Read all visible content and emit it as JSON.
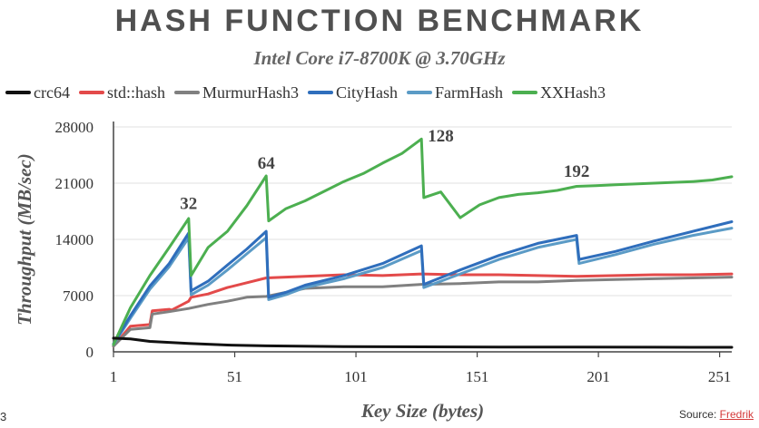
{
  "slide": {
    "title": "HASH FUNCTION BENCHMARK",
    "subtitle": "Intel Core i7-8700K @ 3.70GHz",
    "page_number": "3",
    "source_prefix": "Source: ",
    "source_link": "Fredrik"
  },
  "chart_data": {
    "type": "line",
    "title": "HASH FUNCTION BENCHMARK",
    "subtitle": "Intel Core i7-8700K @ 3.70GHz",
    "xlabel": "Key Size (bytes)",
    "ylabel": "Throughput (MB/sec)",
    "xlim": [
      1,
      256
    ],
    "ylim": [
      0,
      28000
    ],
    "xticks": [
      1,
      51,
      101,
      151,
      201,
      251
    ],
    "yticks": [
      0,
      7000,
      14000,
      21000,
      28000
    ],
    "grid": "horizontal",
    "legend_position": "top",
    "annotations": [
      {
        "text": "32",
        "x": 32,
        "y": 17800
      },
      {
        "text": "64",
        "x": 64,
        "y": 22800
      },
      {
        "text": "128",
        "x": 136,
        "y": 26200
      },
      {
        "text": "192",
        "x": 192,
        "y": 21800
      }
    ],
    "series": [
      {
        "name": "crc64",
        "color": "#111111",
        "points": [
          [
            1,
            1700
          ],
          [
            8,
            1600
          ],
          [
            16,
            1300
          ],
          [
            32,
            1050
          ],
          [
            48,
            850
          ],
          [
            64,
            750
          ],
          [
            96,
            650
          ],
          [
            128,
            620
          ],
          [
            160,
            600
          ],
          [
            192,
            590
          ],
          [
            224,
            580
          ],
          [
            256,
            570
          ]
        ]
      },
      {
        "name": "std::hash",
        "color": "#e34a4a",
        "points": [
          [
            1,
            700
          ],
          [
            8,
            3200
          ],
          [
            16,
            3400
          ],
          [
            17,
            5100
          ],
          [
            24,
            5300
          ],
          [
            25,
            5200
          ],
          [
            32,
            6300
          ],
          [
            33,
            6800
          ],
          [
            40,
            7200
          ],
          [
            48,
            8000
          ],
          [
            56,
            8600
          ],
          [
            64,
            9200
          ],
          [
            72,
            9300
          ],
          [
            80,
            9400
          ],
          [
            96,
            9600
          ],
          [
            112,
            9500
          ],
          [
            128,
            9700
          ],
          [
            144,
            9600
          ],
          [
            160,
            9600
          ],
          [
            176,
            9500
          ],
          [
            192,
            9400
          ],
          [
            208,
            9500
          ],
          [
            224,
            9600
          ],
          [
            240,
            9600
          ],
          [
            256,
            9700
          ]
        ]
      },
      {
        "name": "MurmurHash3",
        "color": "#808080",
        "points": [
          [
            1,
            700
          ],
          [
            8,
            2800
          ],
          [
            16,
            3000
          ],
          [
            17,
            4700
          ],
          [
            24,
            5000
          ],
          [
            32,
            5400
          ],
          [
            40,
            5900
          ],
          [
            48,
            6300
          ],
          [
            56,
            6800
          ],
          [
            64,
            6900
          ],
          [
            72,
            7400
          ],
          [
            80,
            7900
          ],
          [
            96,
            8100
          ],
          [
            112,
            8100
          ],
          [
            128,
            8400
          ],
          [
            144,
            8500
          ],
          [
            160,
            8700
          ],
          [
            176,
            8700
          ],
          [
            192,
            8900
          ],
          [
            208,
            9000
          ],
          [
            224,
            9100
          ],
          [
            240,
            9200
          ],
          [
            256,
            9300
          ]
        ]
      },
      {
        "name": "CityHash",
        "color": "#2f6ebc",
        "points": [
          [
            1,
            1000
          ],
          [
            8,
            4500
          ],
          [
            16,
            8200
          ],
          [
            24,
            11000
          ],
          [
            32,
            14800
          ],
          [
            33,
            7600
          ],
          [
            40,
            8800
          ],
          [
            48,
            10800
          ],
          [
            56,
            12800
          ],
          [
            64,
            15000
          ],
          [
            65,
            6800
          ],
          [
            72,
            7400
          ],
          [
            80,
            8300
          ],
          [
            96,
            9500
          ],
          [
            112,
            11000
          ],
          [
            128,
            13200
          ],
          [
            129,
            8400
          ],
          [
            144,
            10200
          ],
          [
            160,
            12000
          ],
          [
            176,
            13500
          ],
          [
            192,
            14500
          ],
          [
            193,
            11500
          ],
          [
            208,
            12500
          ],
          [
            224,
            13800
          ],
          [
            240,
            15000
          ],
          [
            256,
            16200
          ]
        ]
      },
      {
        "name": "FarmHash",
        "color": "#5b9bc6",
        "points": [
          [
            1,
            900
          ],
          [
            8,
            4200
          ],
          [
            16,
            7800
          ],
          [
            24,
            10600
          ],
          [
            32,
            14200
          ],
          [
            33,
            7100
          ],
          [
            40,
            8300
          ],
          [
            48,
            10200
          ],
          [
            56,
            12200
          ],
          [
            64,
            14200
          ],
          [
            65,
            6500
          ],
          [
            72,
            7100
          ],
          [
            80,
            8000
          ],
          [
            96,
            9100
          ],
          [
            112,
            10500
          ],
          [
            128,
            12600
          ],
          [
            129,
            8000
          ],
          [
            144,
            9700
          ],
          [
            160,
            11500
          ],
          [
            176,
            13000
          ],
          [
            192,
            14000
          ],
          [
            193,
            11000
          ],
          [
            208,
            12100
          ],
          [
            224,
            13400
          ],
          [
            240,
            14500
          ],
          [
            256,
            15400
          ]
        ]
      },
      {
        "name": "XXHash3",
        "color": "#4caf50",
        "points": [
          [
            1,
            900
          ],
          [
            8,
            5500
          ],
          [
            16,
            9500
          ],
          [
            24,
            13000
          ],
          [
            32,
            16600
          ],
          [
            33,
            9500
          ],
          [
            40,
            13000
          ],
          [
            48,
            15000
          ],
          [
            56,
            18200
          ],
          [
            64,
            21900
          ],
          [
            65,
            16300
          ],
          [
            72,
            17800
          ],
          [
            80,
            18800
          ],
          [
            88,
            20000
          ],
          [
            96,
            21200
          ],
          [
            104,
            22200
          ],
          [
            112,
            23500
          ],
          [
            120,
            24700
          ],
          [
            128,
            26500
          ],
          [
            129,
            19200
          ],
          [
            136,
            19900
          ],
          [
            144,
            16700
          ],
          [
            152,
            18300
          ],
          [
            160,
            19200
          ],
          [
            168,
            19600
          ],
          [
            176,
            19800
          ],
          [
            184,
            20100
          ],
          [
            192,
            20600
          ],
          [
            200,
            20700
          ],
          [
            208,
            20800
          ],
          [
            216,
            20900
          ],
          [
            224,
            21000
          ],
          [
            232,
            21100
          ],
          [
            240,
            21200
          ],
          [
            248,
            21400
          ],
          [
            256,
            21800
          ]
        ]
      }
    ]
  }
}
